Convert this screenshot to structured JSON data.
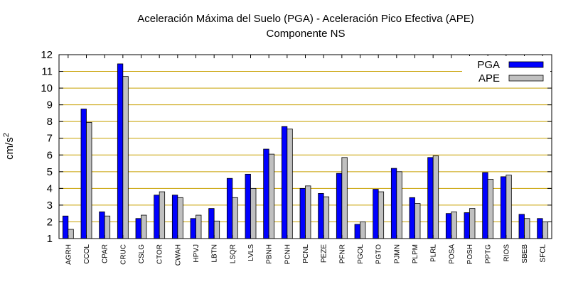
{
  "chart_data": {
    "type": "bar",
    "title_line1": "Aceleración Máxima del Suelo (PGA) -  Aceleración Pico Efectiva (APE)",
    "title_line2": "Componente NS",
    "ylabel_base": "cm/s",
    "ylabel_sup": "2",
    "xlabel": "",
    "ylim": [
      1,
      12
    ],
    "yticks": [
      1,
      2,
      3,
      4,
      5,
      6,
      7,
      8,
      9,
      10,
      11,
      12
    ],
    "grid": "horizontal",
    "legend_position": "top-right",
    "categories": [
      "AGRH",
      "CCOL",
      "CPAR",
      "CRUC",
      "CSLG",
      "CTOR",
      "CWAH",
      "HPVJ",
      "LBTN",
      "LSQR",
      "LVLS",
      "PBNH",
      "PCNH",
      "PCNL",
      "PEZE",
      "PFNR",
      "PGOL",
      "PGTO",
      "PJMN",
      "PLPM",
      "PLRL",
      "POSA",
      "POSH",
      "PPTG",
      "RIOS",
      "SBEB",
      "SFCL"
    ],
    "series": [
      {
        "name": "PGA",
        "color": "#0000ff",
        "values": [
          2.35,
          8.75,
          2.6,
          11.45,
          2.2,
          3.6,
          3.6,
          2.2,
          2.8,
          4.6,
          4.85,
          6.35,
          7.7,
          4.0,
          3.7,
          4.9,
          1.85,
          3.95,
          5.2,
          3.45,
          5.85,
          2.5,
          2.55,
          4.95,
          4.7,
          2.45,
          2.2
        ]
      },
      {
        "name": "APE",
        "color": "#c0c0c0",
        "values": [
          1.55,
          7.95,
          2.35,
          10.7,
          2.4,
          3.8,
          3.45,
          2.4,
          2.05,
          3.45,
          4.0,
          6.05,
          7.55,
          4.15,
          3.5,
          5.85,
          2.0,
          3.8,
          5.0,
          3.1,
          5.95,
          2.6,
          2.8,
          4.55,
          4.8,
          2.2,
          2.0
        ]
      }
    ]
  }
}
